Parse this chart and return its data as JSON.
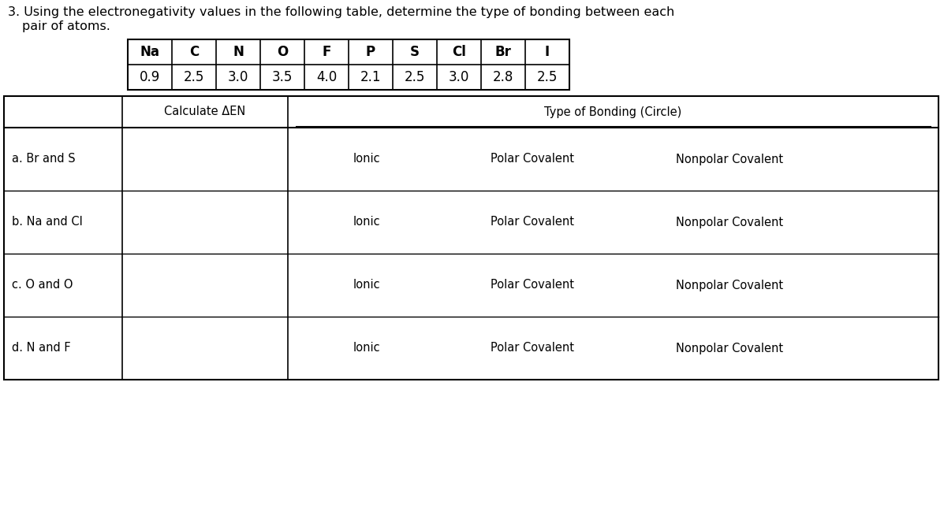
{
  "title_line1": "3. Using the electronegativity values in the following table, determine the type of bonding between each",
  "title_line2": "pair of atoms.",
  "en_elements": [
    "Na",
    "C",
    "N",
    "O",
    "F",
    "P",
    "S",
    "Cl",
    "Br",
    "I"
  ],
  "en_values": [
    "0.9",
    "2.5",
    "3.0",
    "3.5",
    "4.0",
    "2.1",
    "2.5",
    "3.0",
    "2.8",
    "2.5"
  ],
  "col_header1": "Calculate ΔEN",
  "col_header2": "Type of Bonding (Circle)",
  "rows": [
    {
      "label": "a. Br and S"
    },
    {
      "label": "b. Na and Cl"
    },
    {
      "label": "c. O and O"
    },
    {
      "label": "d. N and F"
    }
  ],
  "bond_types": [
    "Ionic",
    "Polar Covalent",
    "Nonpolar Covalent"
  ],
  "bg_color": "#ffffff",
  "text_color": "#000000",
  "font_size_title": 11.5,
  "font_size_table": 11,
  "font_size_en": 12
}
